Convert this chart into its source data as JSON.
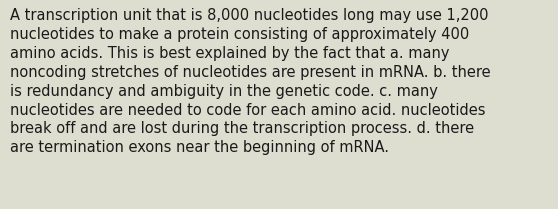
{
  "text": "A transcription unit that is 8,000 nucleotides long may use 1,200\nnucleotides to make a protein consisting of approximately 400\namino acids. This is best explained by the fact that a. many\nnoncoding stretches of nucleotides are present in mRNA. b. there\nis redundancy and ambiguity in the genetic code. c. many\nnucleotides are needed to code for each amino acid. nucleotides\nbreak off and are lost during the transcription process. d. there\nare termination exons near the beginning of mRNA.",
  "background_color": "#deded0",
  "text_color": "#1a1a1a",
  "font_size": 10.5,
  "fig_width": 5.58,
  "fig_height": 2.09,
  "dpi": 100
}
